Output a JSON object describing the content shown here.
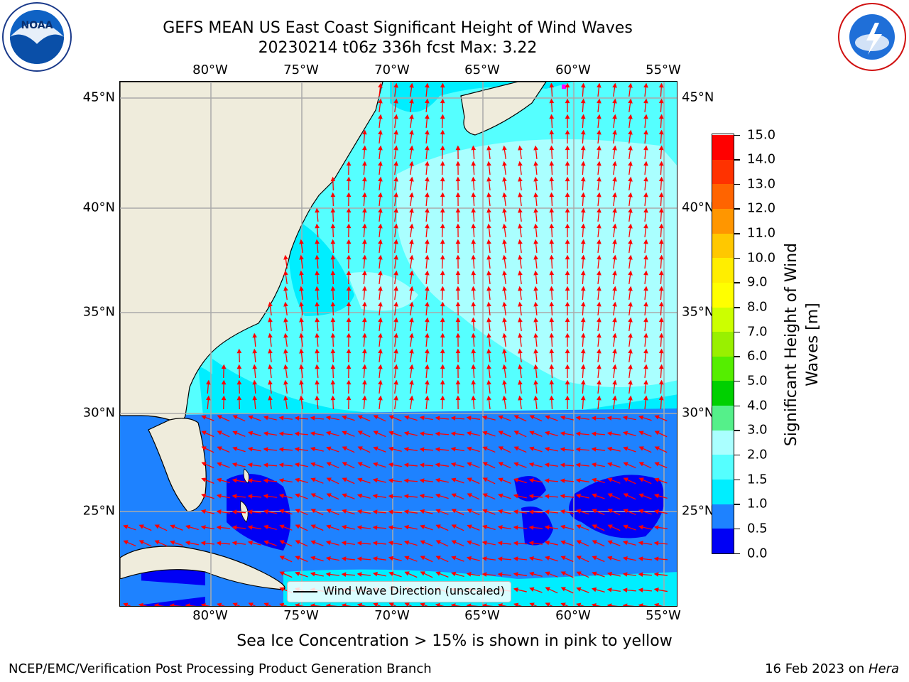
{
  "title_line1": "GEFS MEAN US East Coast Significant Height of Wind Waves",
  "title_line2": "20230214 t06z 336h fcst   Max: 3.22",
  "lon_ticks": [
    "80°W",
    "75°W",
    "70°W",
    "65°W",
    "60°W",
    "55°W"
  ],
  "lat_ticks": [
    "45°N",
    "40°N",
    "35°N",
    "30°N",
    "25°N"
  ],
  "colorbar": {
    "title_line1": "Significant Height of Wind",
    "title_line2": "Waves [m]",
    "labels": [
      "0.0",
      "0.5",
      "1.0",
      "1.5",
      "2.0",
      "3.0",
      "4.0",
      "5.0",
      "6.0",
      "7.0",
      "8.0",
      "9.0",
      "10.0",
      "11.0",
      "12.0",
      "13.0",
      "14.0",
      "15.0"
    ],
    "colors": [
      "#0000f5",
      "#1e82ff",
      "#00eeff",
      "#55ffff",
      "#aaffff",
      "#55f08a",
      "#00d000",
      "#55ee00",
      "#99f000",
      "#ccff00",
      "#ffff00",
      "#ffee00",
      "#ffc800",
      "#ff9600",
      "#ff6400",
      "#ff3200",
      "#ff0000"
    ]
  },
  "legend_label": "Wind Wave Direction (unscaled)",
  "footnote": "Sea Ice Concentration > 15% is shown in pink to yellow",
  "credit_left": "NCEP/EMC/Verification Post Processing Product Generation Branch",
  "credit_date": "16 Feb 2023 on ",
  "credit_machine": "Hera",
  "logo_left": "NOAA",
  "logo_right": "NATIONAL WEATHER SERVICE",
  "colors": {
    "land": "#efecdc",
    "arrow": "#ff0000",
    "grid": "#aaaaaa"
  }
}
